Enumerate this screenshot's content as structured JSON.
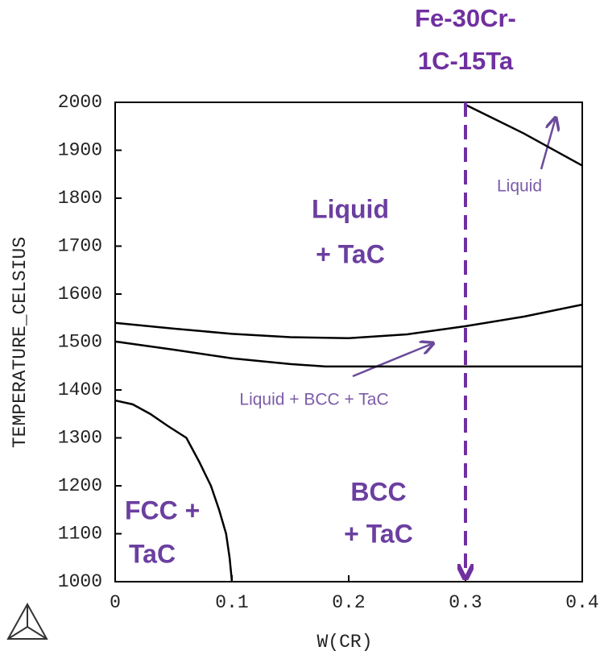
{
  "chart_data": {
    "type": "line",
    "x_label": "TEMPERATURE_CELSIUS",
    "xlabel": "W(CR)",
    "xlim": [
      0,
      0.4
    ],
    "xticks": [
      0,
      0.1,
      0.2,
      0.3,
      0.4
    ],
    "ylim": [
      1000,
      2000
    ],
    "yticks": [
      1000,
      1100,
      1200,
      1300,
      1400,
      1500,
      1600,
      1700,
      1800,
      1900,
      2000
    ],
    "series": [
      {
        "color": "#000000",
        "x": [
          0.3,
          0.35,
          0.4
        ],
        "values": [
          1995,
          1935,
          1868
        ]
      },
      {
        "color": "#000000",
        "x": [
          0,
          0.05,
          0.1,
          0.15,
          0.2,
          0.25,
          0.3,
          0.35,
          0.4
        ],
        "values": [
          1540,
          1528,
          1517,
          1510,
          1508,
          1516,
          1533,
          1553,
          1578
        ]
      },
      {
        "color": "#000000",
        "x": [
          0,
          0.05,
          0.1,
          0.15,
          0.18,
          0.25,
          0.3,
          0.35,
          0.4
        ],
        "values": [
          1501,
          1484,
          1466,
          1454,
          1449,
          1449,
          1449,
          1449,
          1449
        ]
      },
      {
        "color": "#000000",
        "x": [
          0,
          0.015,
          0.03,
          0.045,
          0.061,
          0.072,
          0.082,
          0.089,
          0.095,
          0.098,
          0.1
        ],
        "values": [
          1378,
          1370,
          1350,
          1325,
          1300,
          1250,
          1200,
          1150,
          1100,
          1050,
          1000
        ]
      }
    ],
    "marker": {
      "x": 0.3,
      "color": "#7030a0",
      "label": [
        "Fe-30Cr-",
        "1C-15Ta"
      ]
    },
    "regions": [
      [
        "Liquid",
        "+ TaC"
      ],
      [
        "FCC +",
        "TaC"
      ],
      [
        "BCC",
        "+ TaC"
      ]
    ],
    "annotations": [
      "Liquid",
      "Liquid + BCC + TaC"
    ]
  }
}
